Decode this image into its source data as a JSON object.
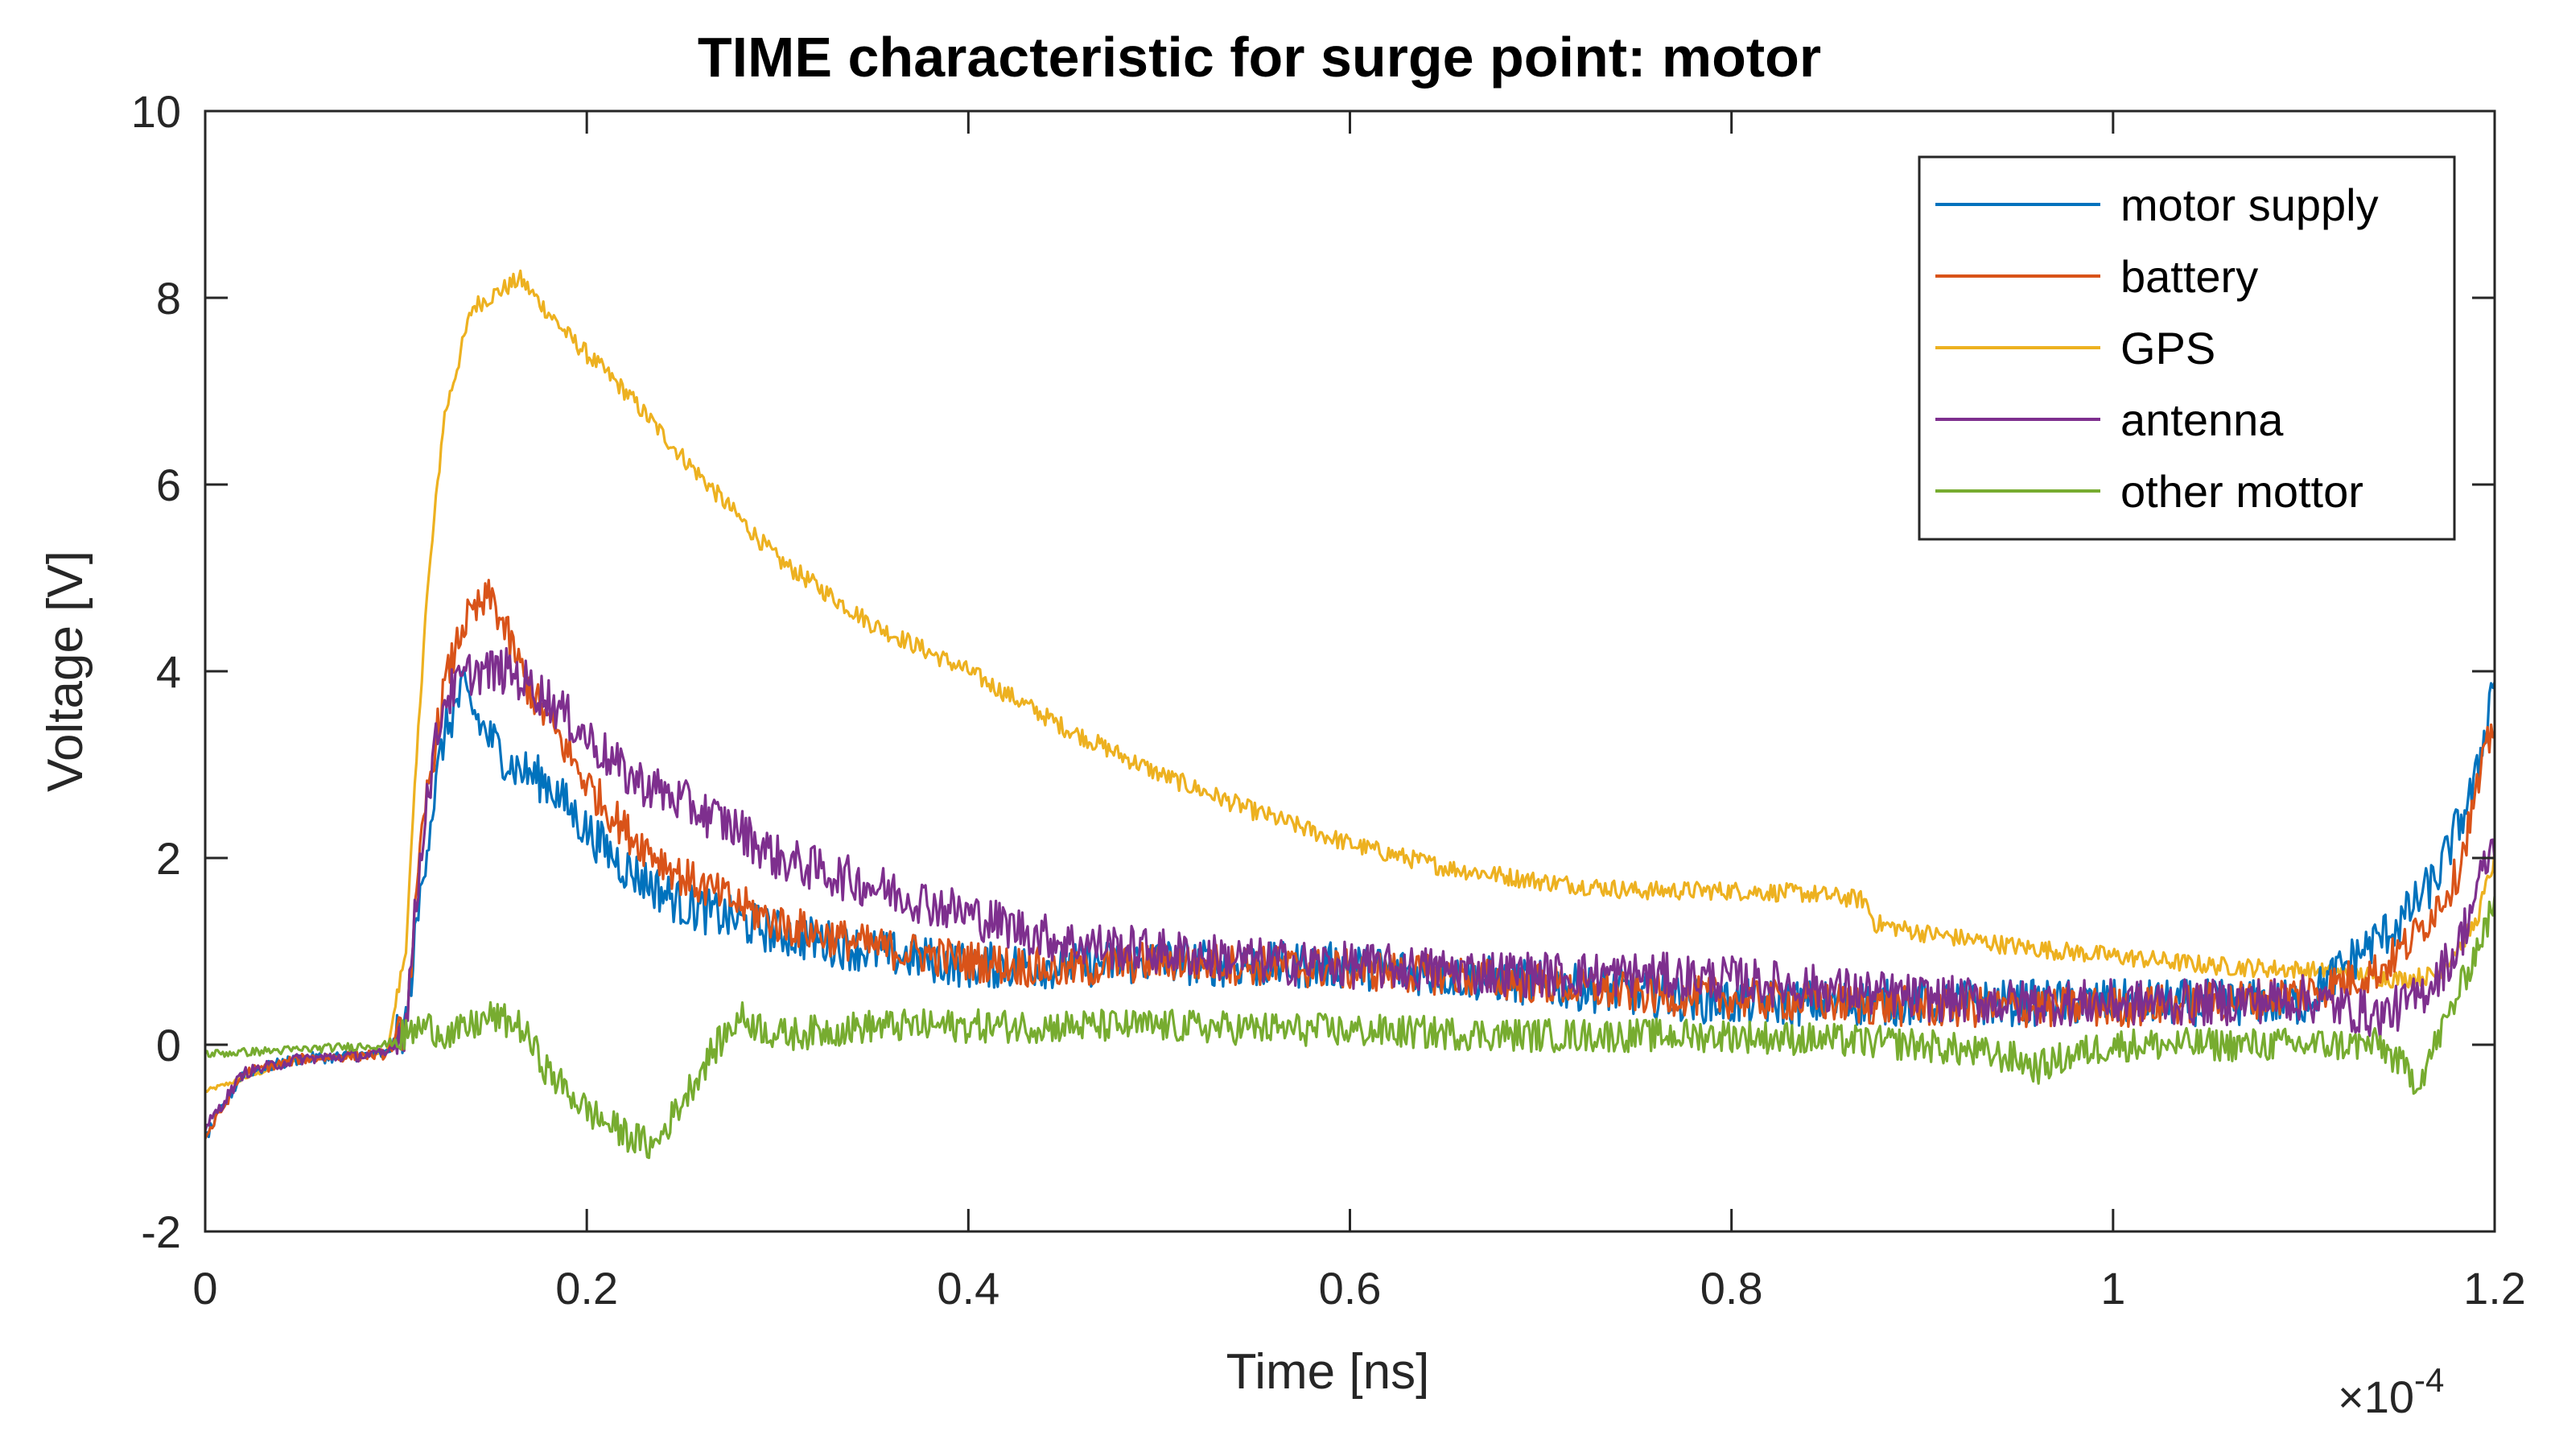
{
  "chart_data": {
    "type": "line",
    "title": "TIME characteristic for surge point: motor",
    "xlabel": "Time [ns]",
    "ylabel": "Voltage [V]",
    "xlim": [
      0,
      1.2
    ],
    "ylim": [
      -2,
      10
    ],
    "x_exponent_prefix": "×10",
    "x_exponent_power": "-4",
    "x_ticks": [
      0,
      0.2,
      0.4,
      0.6,
      0.8,
      1,
      1.2
    ],
    "x_tick_labels": [
      "0",
      "0.2",
      "0.4",
      "0.6",
      "0.8",
      "1",
      "1.2"
    ],
    "y_ticks": [
      -2,
      0,
      2,
      4,
      6,
      8,
      10
    ],
    "y_tick_labels": [
      "-2",
      "0",
      "2",
      "4",
      "6",
      "8",
      "10"
    ],
    "grid": false,
    "legend_position": "top-right",
    "series": [
      {
        "name": "motor supply",
        "color": "#0072BD",
        "x": [
          0,
          0.02,
          0.05,
          0.095,
          0.105,
          0.115,
          0.125,
          0.135,
          0.145,
          0.16,
          0.18,
          0.2,
          0.22,
          0.25,
          0.3,
          0.35,
          0.4,
          0.45,
          0.5,
          0.55,
          0.6,
          0.65,
          0.7,
          0.75,
          0.8,
          0.85,
          0.9,
          0.95,
          1.0,
          1.05,
          1.1,
          1.13,
          1.15,
          1.17,
          1.19,
          1.2
        ],
        "y": [
          -1.0,
          -0.3,
          -0.15,
          -0.1,
          0.2,
          2.0,
          3.3,
          3.8,
          3.4,
          3.0,
          2.8,
          2.3,
          1.9,
          1.5,
          1.2,
          1.0,
          0.85,
          0.85,
          0.9,
          0.85,
          0.85,
          0.75,
          0.65,
          0.55,
          0.45,
          0.45,
          0.45,
          0.45,
          0.45,
          0.45,
          0.45,
          1.0,
          1.3,
          1.8,
          2.8,
          4.0
        ],
        "noise": 0.25
      },
      {
        "name": "battery",
        "color": "#D95319",
        "x": [
          0,
          0.02,
          0.05,
          0.095,
          0.105,
          0.115,
          0.125,
          0.135,
          0.15,
          0.17,
          0.2,
          0.22,
          0.25,
          0.3,
          0.35,
          0.4,
          0.45,
          0.5,
          0.55,
          0.6,
          0.65,
          0.7,
          0.75,
          0.8,
          0.85,
          0.9,
          0.95,
          1.0,
          1.05,
          1.1,
          1.14,
          1.16,
          1.18,
          1.2
        ],
        "y": [
          -1.0,
          -0.3,
          -0.15,
          -0.1,
          0.2,
          2.5,
          3.8,
          4.5,
          4.8,
          3.8,
          2.8,
          2.3,
          1.8,
          1.3,
          1.05,
          0.9,
          0.8,
          0.9,
          0.85,
          0.8,
          0.75,
          0.65,
          0.55,
          0.5,
          0.45,
          0.4,
          0.4,
          0.4,
          0.45,
          0.55,
          0.8,
          1.2,
          1.8,
          3.5
        ],
        "noise": 0.22
      },
      {
        "name": "GPS",
        "color": "#EDB120",
        "x": [
          0,
          0.05,
          0.095,
          0.105,
          0.115,
          0.125,
          0.14,
          0.165,
          0.19,
          0.22,
          0.25,
          0.3,
          0.35,
          0.4,
          0.45,
          0.5,
          0.55,
          0.6,
          0.65,
          0.7,
          0.75,
          0.8,
          0.84,
          0.87,
          0.875,
          0.9,
          0.95,
          1.0,
          1.05,
          1.1,
          1.13,
          1.15,
          1.17,
          1.19,
          1.2
        ],
        "y": [
          -0.5,
          -0.15,
          -0.1,
          1.0,
          4.5,
          6.7,
          7.9,
          8.2,
          7.6,
          7.0,
          6.3,
          5.2,
          4.5,
          4.0,
          3.4,
          2.9,
          2.5,
          2.15,
          1.9,
          1.75,
          1.65,
          1.65,
          1.62,
          1.55,
          1.3,
          1.2,
          1.05,
          0.95,
          0.85,
          0.8,
          0.75,
          0.7,
          0.75,
          1.3,
          2.0
        ],
        "noise": 0.1
      },
      {
        "name": "antenna",
        "color": "#7E2F8E",
        "x": [
          0,
          0.02,
          0.05,
          0.095,
          0.105,
          0.115,
          0.125,
          0.14,
          0.16,
          0.18,
          0.2,
          0.22,
          0.25,
          0.28,
          0.3,
          0.35,
          0.4,
          0.45,
          0.5,
          0.55,
          0.6,
          0.65,
          0.7,
          0.75,
          0.8,
          0.85,
          0.9,
          0.95,
          1.0,
          1.05,
          1.1,
          1.14,
          1.16,
          1.18,
          1.2
        ],
        "y": [
          -0.9,
          -0.3,
          -0.15,
          -0.1,
          0.2,
          2.5,
          3.7,
          4.0,
          4.0,
          3.7,
          3.3,
          2.9,
          2.6,
          2.3,
          2.0,
          1.7,
          1.4,
          1.1,
          1.0,
          0.9,
          0.85,
          0.8,
          0.75,
          0.75,
          0.7,
          0.6,
          0.5,
          0.45,
          0.45,
          0.45,
          0.5,
          0.3,
          0.5,
          1.0,
          2.2
        ],
        "noise": 0.25
      },
      {
        "name": "other mottor",
        "color": "#77AC30",
        "x": [
          0,
          0.05,
          0.095,
          0.105,
          0.115,
          0.13,
          0.15,
          0.165,
          0.18,
          0.2,
          0.215,
          0.235,
          0.25,
          0.265,
          0.28,
          0.3,
          0.35,
          0.4,
          0.5,
          0.6,
          0.7,
          0.8,
          0.9,
          0.95,
          0.96,
          0.98,
          1.0,
          1.05,
          1.1,
          1.14,
          1.16,
          1.18,
          1.2
        ],
        "y": [
          -0.1,
          -0.05,
          0.0,
          0.1,
          0.2,
          0.1,
          0.3,
          0.2,
          -0.3,
          -0.7,
          -0.9,
          -1.1,
          -0.6,
          -0.1,
          0.3,
          0.1,
          0.2,
          0.2,
          0.2,
          0.15,
          0.1,
          0.1,
          0.0,
          -0.15,
          -0.25,
          -0.1,
          0.0,
          0.0,
          0.0,
          0.0,
          -0.4,
          0.5,
          1.5
        ],
        "noise": 0.18
      }
    ]
  }
}
